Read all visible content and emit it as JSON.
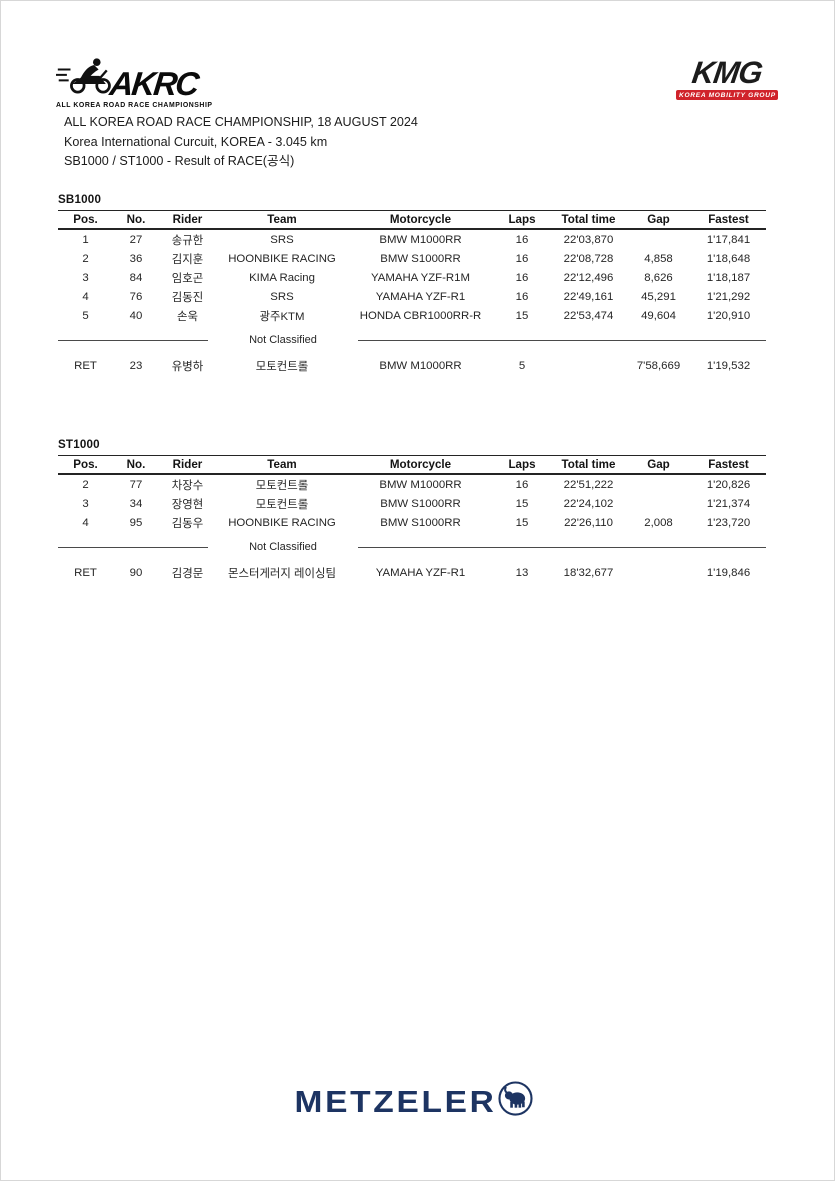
{
  "logos": {
    "akrc": {
      "word": "AKRC",
      "tagline": "ALL KOREA ROAD RACE CHAMPIONSHIP",
      "icon": "motorcycle-racer-icon",
      "color": "#0b0b0b"
    },
    "kmg": {
      "word": "KMG",
      "tagline": "KOREA MOBILITY GROUP",
      "bar_color": "#d0232b",
      "text_color": "#1c1c1c"
    },
    "metzeler": {
      "word": "METZELER",
      "icon": "elephant-icon",
      "color": "#1d3462"
    }
  },
  "header": {
    "line1": "ALL KOREA ROAD RACE CHAMPIONSHIP, 18 AUGUST 2024",
    "line2": "Korea International Curcuit, KOREA - 3.045 km",
    "line3": "SB1000 / ST1000 - Result of RACE(공식)"
  },
  "tables": [
    {
      "title": "SB1000",
      "columns": [
        "Pos.",
        "No.",
        "Rider",
        "Team",
        "Motorcycle",
        "Laps",
        "Total time",
        "Gap",
        "Fastest"
      ],
      "rows": [
        [
          "1",
          "27",
          "송규한",
          "SRS",
          "BMW M1000RR",
          "16",
          "22'03,870",
          "",
          "1'17,841"
        ],
        [
          "2",
          "36",
          "김지훈",
          "HOONBIKE RACING",
          "BMW S1000RR",
          "16",
          "22'08,728",
          "4,858",
          "1'18,648"
        ],
        [
          "3",
          "84",
          "임호곤",
          "KIMA Racing",
          "YAMAHA YZF-R1M",
          "16",
          "22'12,496",
          "8,626",
          "1'18,187"
        ],
        [
          "4",
          "76",
          "김동진",
          "SRS",
          "YAMAHA YZF-R1",
          "16",
          "22'49,161",
          "45,291",
          "1'21,292"
        ],
        [
          "5",
          "40",
          "손욱",
          "광주KTM",
          "HONDA CBR1000RR-R",
          "15",
          "22'53,474",
          "49,604",
          "1'20,910"
        ]
      ],
      "not_classified_label": "Not Classified",
      "ret_rows": [
        [
          "RET",
          "23",
          "유병하",
          "모토컨트롤",
          "BMW M1000RR",
          "5",
          "",
          "7'58,669",
          "1'19,532"
        ]
      ]
    },
    {
      "title": "ST1000",
      "columns": [
        "Pos.",
        "No.",
        "Rider",
        "Team",
        "Motorcycle",
        "Laps",
        "Total time",
        "Gap",
        "Fastest"
      ],
      "rows": [
        [
          "2",
          "77",
          "차장수",
          "모토컨트롤",
          "BMW M1000RR",
          "16",
          "22'51,222",
          "",
          "1'20,826"
        ],
        [
          "3",
          "34",
          "장영현",
          "모토컨트롤",
          "BMW S1000RR",
          "15",
          "22'24,102",
          "",
          "1'21,374"
        ],
        [
          "4",
          "95",
          "김동우",
          "HOONBIKE RACING",
          "BMW S1000RR",
          "15",
          "22'26,110",
          "2,008",
          "1'23,720"
        ]
      ],
      "not_classified_label": "Not Classified",
      "ret_rows": [
        [
          "RET",
          "90",
          "김경문",
          "몬스터게러지 레이싱팀",
          "YAMAHA YZF-R1",
          "13",
          "18'32,677",
          "",
          "1'19,846"
        ]
      ]
    }
  ]
}
